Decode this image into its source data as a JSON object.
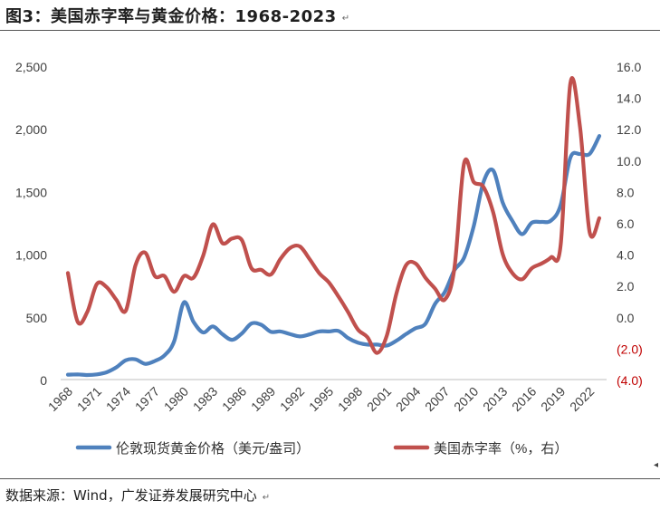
{
  "header": {
    "title": "图3：美国赤字率与黄金价格：1968-2023",
    "return_mark": "↵"
  },
  "footer": {
    "source": "数据来源：Wind，广发证券发展研究中心",
    "return_mark": "↵",
    "side_mark": "◂"
  },
  "colors": {
    "gold_line": "#4f81bd",
    "deficit_line": "#c0504d",
    "negative_tick": "#c00000",
    "axis_text": "#404040"
  },
  "chart_data": {
    "type": "line",
    "title": "",
    "xlabel": "",
    "x_tick_labels": [
      "1968",
      "1971",
      "1974",
      "1977",
      "1980",
      "1983",
      "1986",
      "1989",
      "1992",
      "1995",
      "1998",
      "2001",
      "2004",
      "2007",
      "2010",
      "2013",
      "2016",
      "2019",
      "2022"
    ],
    "ylim_left": [
      0,
      2500
    ],
    "ylim_right": [
      -4.0,
      16.0
    ],
    "y_left_ticks": [
      "0",
      "500",
      "1,000",
      "1,500",
      "2,000",
      "2,500"
    ],
    "y_right_ticks": [
      "16.0",
      "14.0",
      "12.0",
      "10.0",
      "8.0",
      "6.0",
      "4.0",
      "2.0",
      "0.0",
      "(2.0)",
      "(4.0)"
    ],
    "grid": false,
    "legend_position": "bottom",
    "x": [
      1968,
      1969,
      1970,
      1971,
      1972,
      1973,
      1974,
      1975,
      1976,
      1977,
      1978,
      1979,
      1980,
      1981,
      1982,
      1983,
      1984,
      1985,
      1986,
      1987,
      1988,
      1989,
      1990,
      1991,
      1992,
      1993,
      1994,
      1995,
      1996,
      1997,
      1998,
      1999,
      2000,
      2001,
      2002,
      2003,
      2004,
      2005,
      2006,
      2007,
      2008,
      2009,
      2010,
      2011,
      2012,
      2013,
      2014,
      2015,
      2016,
      2017,
      2018,
      2019,
      2020,
      2021,
      2022,
      2023
    ],
    "series": [
      {
        "name": "伦敦现货黄金价格（美元/盎司）",
        "axis": "left",
        "values": [
          39,
          41,
          36,
          41,
          58,
          97,
          154,
          161,
          125,
          148,
          193,
          306,
          615,
          460,
          376,
          424,
          361,
          317,
          368,
          447,
          437,
          381,
          384,
          362,
          344,
          360,
          384,
          384,
          388,
          331,
          294,
          279,
          279,
          271,
          310,
          363,
          410,
          445,
          604,
          697,
          872,
          972,
          1225,
          1572,
          1669,
          1411,
          1266,
          1160,
          1251,
          1257,
          1268,
          1393,
          1770,
          1799,
          1800,
          1943
        ]
      },
      {
        "name": "美国赤字率（%，右）",
        "axis": "right",
        "values": [
          2.8,
          -0.3,
          0.3,
          2.1,
          1.9,
          1.1,
          0.4,
          3.3,
          4.1,
          2.6,
          2.6,
          1.6,
          2.6,
          2.5,
          3.9,
          5.9,
          4.7,
          5.0,
          4.9,
          3.1,
          3.0,
          2.7,
          3.7,
          4.4,
          4.5,
          3.7,
          2.8,
          2.2,
          1.3,
          0.3,
          -0.8,
          -1.3,
          -2.3,
          -1.2,
          1.5,
          3.3,
          3.4,
          2.5,
          1.8,
          1.1,
          3.1,
          9.8,
          8.6,
          8.3,
          6.7,
          4.0,
          2.8,
          2.4,
          3.1,
          3.4,
          3.8,
          4.6,
          14.9,
          12.1,
          5.4,
          6.3
        ]
      }
    ]
  }
}
